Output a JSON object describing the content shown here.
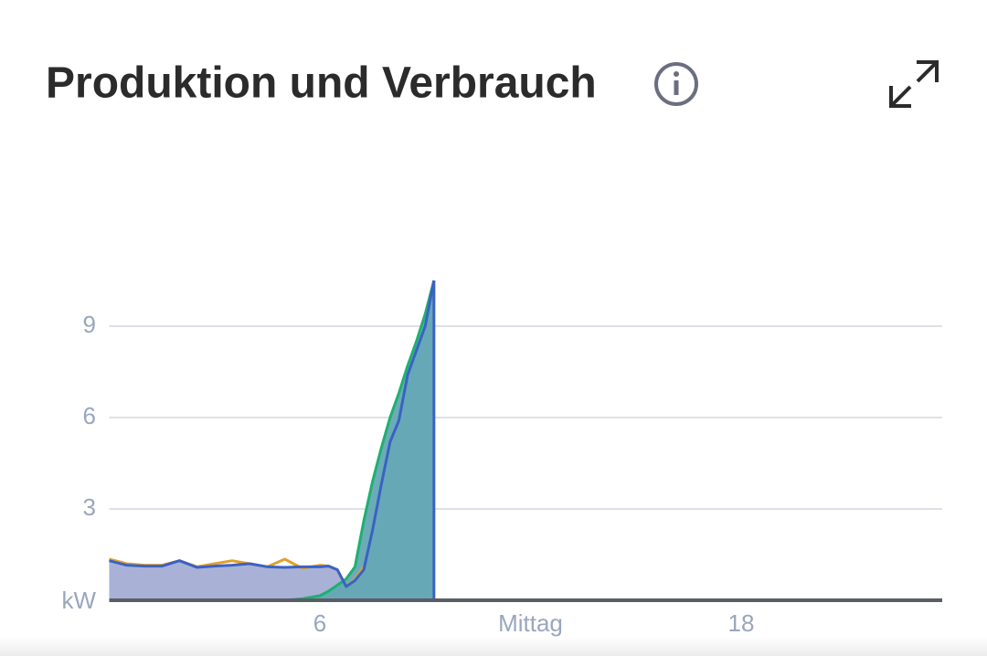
{
  "header": {
    "title": "Produktion und Verbrauch"
  },
  "chart_data": {
    "type": "area",
    "x": [
      0,
      0.5,
      1,
      1.5,
      2,
      2.5,
      3,
      3.5,
      4,
      4.5,
      5,
      5.5,
      6,
      6.25,
      6.5,
      6.75,
      7,
      7.25,
      7.5,
      7.75,
      8,
      8.25,
      8.5,
      8.75,
      9,
      9.25
    ],
    "series": [
      {
        "color": "#3a62c4",
        "fill": "#a4aed4",
        "values": [
          1.3,
          1.15,
          1.12,
          1.12,
          1.3,
          1.08,
          1.12,
          1.15,
          1.2,
          1.1,
          1.08,
          1.1,
          1.1,
          1.12,
          1.0,
          0.45,
          0.65,
          1.0,
          2.3,
          3.8,
          5.2,
          5.9,
          7.4,
          8.2,
          9.0,
          10.5
        ]
      },
      {
        "color": "#1fb070",
        "fill": "#63a8b4",
        "values": [
          0,
          0,
          0,
          0,
          0,
          0,
          0,
          0,
          0,
          0,
          0,
          0.05,
          0.15,
          0.3,
          0.5,
          0.7,
          1.1,
          2.6,
          3.9,
          5.0,
          6.0,
          6.8,
          7.7,
          8.5,
          9.4,
          10.5
        ]
      },
      {
        "color": "#e0a030",
        "values": [
          1.35,
          1.2,
          1.15,
          1.15,
          1.3,
          1.1,
          1.2,
          1.3,
          1.2,
          1.1,
          1.35,
          1.05,
          1.15,
          1.12,
          1.0,
          0.45,
          0.7,
          1.1,
          null,
          null,
          null,
          null,
          null,
          null,
          null,
          null
        ]
      }
    ],
    "xlim": [
      0,
      24
    ],
    "ylim": [
      0,
      10.5
    ],
    "xticks": [
      6,
      {
        "value": 12,
        "label": "Mittag"
      },
      18
    ],
    "yticks": [
      {
        "value": 0,
        "label": "kW"
      },
      3,
      6,
      9
    ],
    "grid": true
  }
}
